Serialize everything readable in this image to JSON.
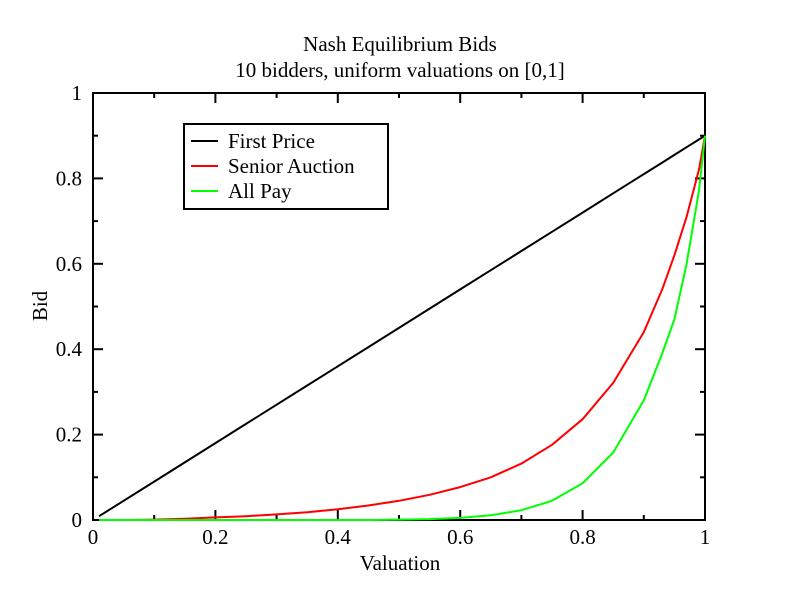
{
  "chart_data": {
    "type": "line",
    "title": "Nash Equilibrium Bids",
    "subtitle": "10 bidders, uniform valuations on [0,1]",
    "xlabel": "Valuation",
    "ylabel": "Bid",
    "xlim": [
      0,
      1
    ],
    "ylim": [
      0,
      1
    ],
    "x_ticks": [
      0,
      0.2,
      0.4,
      0.6,
      0.8,
      1
    ],
    "x_tick_labels": [
      "0",
      "0.2",
      "0.4",
      "0.6",
      "0.8",
      "1"
    ],
    "y_ticks": [
      0,
      0.2,
      0.4,
      0.6,
      0.8,
      1
    ],
    "y_tick_labels": [
      "0",
      "0.2",
      "0.4",
      "0.6",
      "0.8",
      "1"
    ],
    "grid": false,
    "legend_position": "top-left",
    "x": [
      0.01,
      0.05,
      0.1,
      0.15,
      0.2,
      0.25,
      0.3,
      0.35,
      0.4,
      0.45,
      0.5,
      0.55,
      0.6,
      0.65,
      0.7,
      0.75,
      0.8,
      0.85,
      0.9,
      0.93,
      0.95,
      0.97,
      0.99,
      1.0
    ],
    "series": [
      {
        "name": "First Price",
        "color": "#000000",
        "values": [
          0.009,
          0.045,
          0.09,
          0.135,
          0.18,
          0.225,
          0.27,
          0.315,
          0.36,
          0.405,
          0.45,
          0.495,
          0.54,
          0.585,
          0.63,
          0.675,
          0.72,
          0.765,
          0.81,
          0.837,
          0.855,
          0.873,
          0.891,
          0.9
        ]
      },
      {
        "name": "Senior Auction",
        "color": "#ff0000",
        "values": [
          0.0,
          0.0,
          0.001,
          0.003,
          0.006,
          0.009,
          0.013,
          0.018,
          0.025,
          0.034,
          0.045,
          0.059,
          0.077,
          0.1,
          0.132,
          0.176,
          0.236,
          0.321,
          0.44,
          0.54,
          0.62,
          0.71,
          0.82,
          0.9
        ]
      },
      {
        "name": "All Pay",
        "color": "#00ff00",
        "values": [
          0.0,
          0.0,
          0.0,
          0.0,
          0.0,
          0.0,
          0.0,
          0.0,
          0.0,
          0.0,
          0.001,
          0.002,
          0.005,
          0.011,
          0.023,
          0.045,
          0.086,
          0.158,
          0.28,
          0.39,
          0.47,
          0.6,
          0.77,
          0.9
        ]
      }
    ]
  }
}
